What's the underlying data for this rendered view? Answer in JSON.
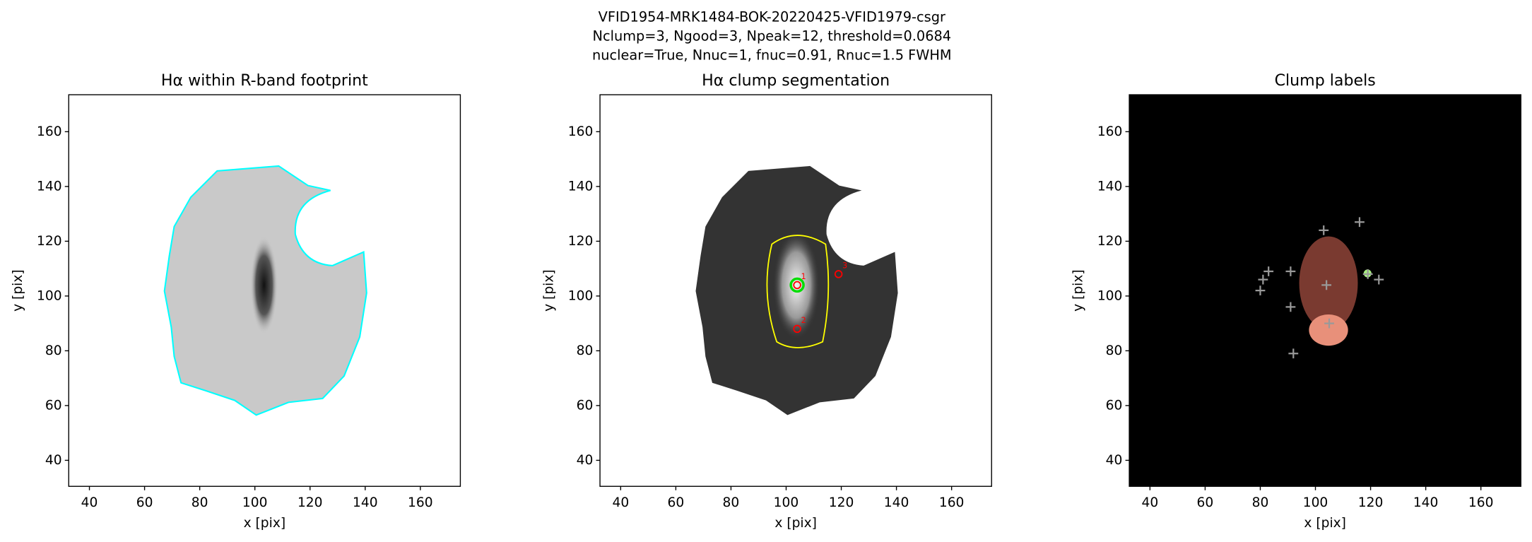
{
  "figure": {
    "title_lines": [
      "VFID1954-MRK1484-BOK-20220425-VFID1979-csgr",
      "Nclump=3, Ngood=3, Npeak=12, threshold=0.0684",
      "nuclear=True, Nnuc=1, fnuc=0.91, Rnuc=1.5 FWHM"
    ]
  },
  "chart_data": [
    {
      "type": "image",
      "title": "Hα within R-band footprint",
      "xlabel": "x [pix]",
      "ylabel": "y [pix]",
      "xlim": [
        32.5,
        174.5
      ],
      "ylim": [
        30.5,
        173.5
      ],
      "xticks": [
        40,
        60,
        80,
        100,
        120,
        140,
        160
      ],
      "yticks": [
        40,
        60,
        80,
        100,
        120,
        140,
        160
      ]
    },
    {
      "type": "image",
      "title": "Hα clump segmentation",
      "xlabel": "x [pix]",
      "ylabel": "y [pix]",
      "xlim": [
        32.5,
        174.5
      ],
      "ylim": [
        30.5,
        173.5
      ],
      "xticks": [
        40,
        60,
        80,
        100,
        120,
        140,
        160
      ],
      "yticks": [
        40,
        60,
        80,
        100,
        120,
        140,
        160
      ],
      "points": {
        "x": [
          104,
          104,
          119
        ],
        "y": [
          104,
          88,
          108
        ],
        "labels": [
          "1",
          "2",
          "3"
        ],
        "color": "#ff0000",
        "nucleus_color": "#00dd00"
      }
    },
    {
      "type": "image",
      "title": "Clump labels",
      "xlabel": "x [pix]",
      "ylabel": "y [pix]",
      "xlim": [
        32.5,
        174.5
      ],
      "ylim": [
        30.5,
        173.5
      ],
      "xticks": [
        40,
        60,
        80,
        100,
        120,
        140,
        160
      ],
      "yticks": [
        40,
        60,
        80,
        100,
        120,
        140,
        160
      ],
      "points": {
        "x": [
          103,
          116,
          83,
          80,
          91,
          81,
          91,
          92,
          104,
          105,
          119,
          123
        ],
        "y": [
          124,
          127,
          109,
          102,
          109,
          106,
          96,
          79,
          104,
          90,
          108,
          106
        ],
        "color": "#999999"
      }
    }
  ]
}
